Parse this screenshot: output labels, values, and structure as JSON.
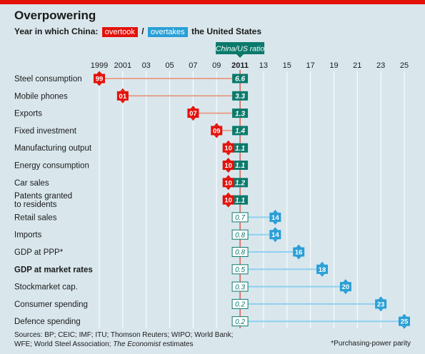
{
  "title": "Overpowering",
  "subtitle": {
    "prefix": "Year in which China:",
    "overtook": "overtook",
    "separator": "/",
    "overtakes": "overtakes",
    "suffix": "the United States"
  },
  "colors": {
    "overtook": "#e3120b",
    "overtakes": "#2a9fd6",
    "ratio": "#0b7a6b",
    "overtook_line": "#e8a08c",
    "overtakes_line": "#8fd0ef"
  },
  "chart_data": {
    "type": "dot",
    "ratio_header": "China/US ratio",
    "x_ticks": [
      {
        "year": 1999,
        "label": "1999",
        "bold": false
      },
      {
        "year": 2001,
        "label": "2001",
        "bold": false
      },
      {
        "year": 2003,
        "label": "03",
        "bold": false
      },
      {
        "year": 2005,
        "label": "05",
        "bold": false
      },
      {
        "year": 2007,
        "label": "07",
        "bold": false
      },
      {
        "year": 2009,
        "label": "09",
        "bold": false
      },
      {
        "year": 2011,
        "label": "2011",
        "bold": true
      },
      {
        "year": 2013,
        "label": "13",
        "bold": false
      },
      {
        "year": 2015,
        "label": "15",
        "bold": false
      },
      {
        "year": 2017,
        "label": "17",
        "bold": false
      },
      {
        "year": 2019,
        "label": "19",
        "bold": false
      },
      {
        "year": 2021,
        "label": "21",
        "bold": false
      },
      {
        "year": 2023,
        "label": "23",
        "bold": false
      },
      {
        "year": 2025,
        "label": "25",
        "bold": false
      }
    ],
    "xlim": [
      1999,
      2025
    ],
    "current_year": 2011,
    "rows": [
      {
        "label": [
          "Steel consumption"
        ],
        "year": 1999,
        "year_label": "99",
        "status": "overtook",
        "ratio": "6.6",
        "bold": false
      },
      {
        "label": [
          "Mobile phones"
        ],
        "year": 2001,
        "year_label": "01",
        "status": "overtook",
        "ratio": "3.3",
        "bold": false
      },
      {
        "label": [
          "Exports"
        ],
        "year": 2007,
        "year_label": "07",
        "status": "overtook",
        "ratio": "1.3",
        "bold": false
      },
      {
        "label": [
          "Fixed investment"
        ],
        "year": 2009,
        "year_label": "09",
        "status": "overtook",
        "ratio": "1.4",
        "bold": false
      },
      {
        "label": [
          "Manufacturing output"
        ],
        "year": 2010,
        "year_label": "10",
        "status": "overtook",
        "ratio": "1.1",
        "bold": false
      },
      {
        "label": [
          "Energy consumption"
        ],
        "year": 2010,
        "year_label": "10",
        "status": "overtook",
        "ratio": "1.1",
        "bold": false
      },
      {
        "label": [
          "Car sales"
        ],
        "year": 2010,
        "year_label": "10",
        "status": "overtook",
        "ratio": "1.2",
        "bold": false
      },
      {
        "label": [
          "Patents granted",
          "to residents"
        ],
        "year": 2010,
        "year_label": "10",
        "status": "overtook",
        "ratio": "1.1",
        "bold": false
      },
      {
        "label": [
          "Retail sales"
        ],
        "year": 2014,
        "year_label": "14",
        "status": "overtakes",
        "ratio": "0.7",
        "bold": false
      },
      {
        "label": [
          "Imports"
        ],
        "year": 2014,
        "year_label": "14",
        "status": "overtakes",
        "ratio": "0.8",
        "bold": false
      },
      {
        "label": [
          "GDP at PPP*"
        ],
        "year": 2016,
        "year_label": "16",
        "status": "overtakes",
        "ratio": "0.8",
        "bold": false
      },
      {
        "label": [
          "GDP at market rates"
        ],
        "year": 2018,
        "year_label": "18",
        "status": "overtakes",
        "ratio": "0.5",
        "bold": true
      },
      {
        "label": [
          "Stockmarket cap."
        ],
        "year": 2020,
        "year_label": "20",
        "status": "overtakes",
        "ratio": "0.3",
        "bold": false
      },
      {
        "label": [
          "Consumer spending"
        ],
        "year": 2023,
        "year_label": "23",
        "status": "overtakes",
        "ratio": "0.2",
        "bold": false
      },
      {
        "label": [
          "Defence spending"
        ],
        "year": 2025,
        "year_label": "25",
        "status": "overtakes",
        "ratio": "0.2",
        "bold": false
      }
    ]
  },
  "sources": {
    "line1": "Sources: BP; CEIC; IMF; ITU; Thomson Reuters; WIPO; World Bank;",
    "line2_prefix": "WFE; World Steel Association;",
    "line2_italic": "The Economist",
    "line2_suffix": "estimates"
  },
  "footnote": "*Purchasing-power parity"
}
